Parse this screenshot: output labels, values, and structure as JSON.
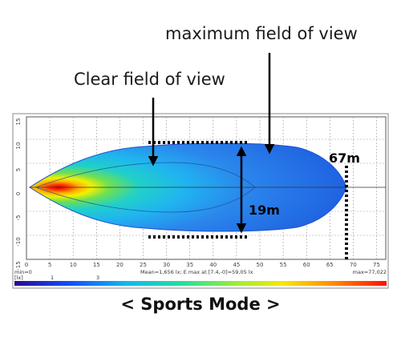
{
  "annotations": {
    "maximum_field_of_view": "maximum field of view",
    "clear_field_of_view": "Clear field of view",
    "distance": "67m",
    "width": "19m"
  },
  "chart": {
    "x_ticks": [
      "0",
      "5",
      "10",
      "15",
      "20",
      "25",
      "30",
      "35",
      "40",
      "45",
      "50",
      "55",
      "60",
      "65",
      "70",
      "75"
    ],
    "y_ticks": [
      "15",
      "10",
      "5",
      "0",
      "-5",
      "-10",
      "-15"
    ],
    "min_label": "min=0",
    "unit_label": "[lx]",
    "stats": "Mean=1,656 lx; E max at [7.4,-0]=59,05 lx",
    "max_label": "max=77,022",
    "scale_labels": [
      "1",
      "3"
    ]
  },
  "caption": "< Sports Mode >",
  "colors": {
    "beam_outer": "#1f5fe0",
    "beam_mid": "#1fc8f0",
    "beam_hot": "#ff2a00",
    "arrows": "#000000"
  }
}
